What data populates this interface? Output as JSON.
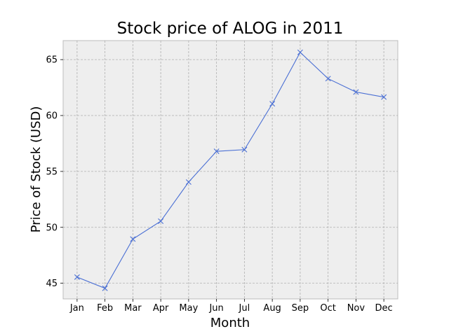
{
  "chart_data": {
    "type": "line",
    "title": "Stock price of ALOG in 2011",
    "xlabel": "Month",
    "ylabel": "Price of Stock (USD)",
    "categories": [
      "Jan",
      "Feb",
      "Mar",
      "Apr",
      "May",
      "Jun",
      "Jul",
      "Aug",
      "Sep",
      "Oct",
      "Nov",
      "Dec"
    ],
    "series": [
      {
        "values": [
          45.55,
          44.55,
          48.95,
          50.55,
          54.05,
          56.8,
          56.95,
          61.05,
          65.65,
          63.3,
          62.1,
          61.65
        ],
        "color": "#4a6fd4",
        "marker": "x"
      }
    ],
    "ylim": [
      43.6,
      66.7
    ],
    "yticks": [
      45,
      50,
      55,
      60,
      65
    ],
    "grid": true,
    "background_color": "#eeeeee"
  }
}
